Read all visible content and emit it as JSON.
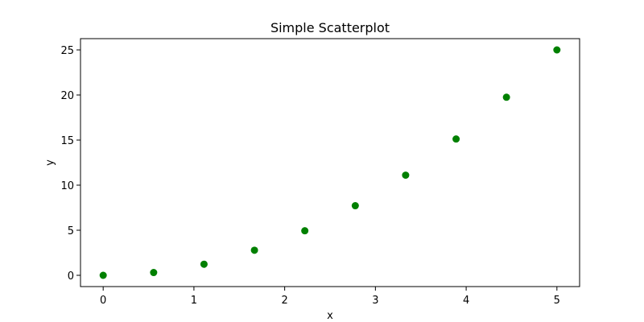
{
  "chart_data": {
    "type": "scatter",
    "title": "Simple Scatterplot",
    "xlabel": "x",
    "ylabel": "y",
    "xlim": [
      -0.25,
      5.25
    ],
    "ylim": [
      -1.25,
      26.25
    ],
    "xticks": [
      0,
      1,
      2,
      3,
      4,
      5
    ],
    "yticks": [
      0,
      5,
      10,
      15,
      20,
      25
    ],
    "grid": false,
    "series": [
      {
        "color": "#008000",
        "x": [
          0,
          0.556,
          1.111,
          1.667,
          2.222,
          2.778,
          3.333,
          3.889,
          4.444,
          5.0
        ],
        "y": [
          0,
          0.31,
          1.23,
          2.78,
          4.94,
          7.72,
          11.11,
          15.12,
          19.75,
          25.0
        ]
      }
    ]
  }
}
